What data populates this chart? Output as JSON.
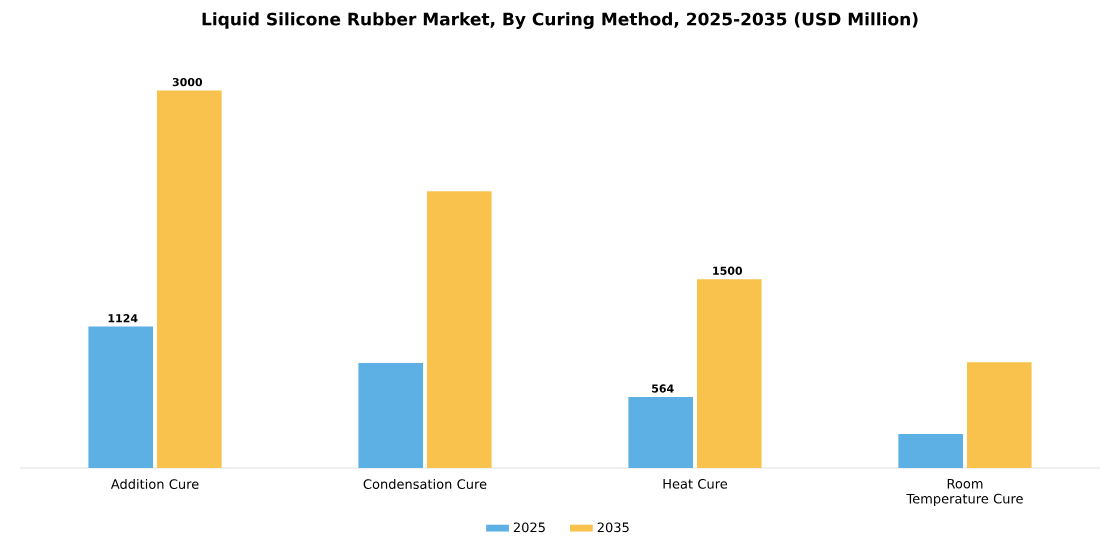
{
  "chart_data": {
    "type": "bar",
    "title": "Liquid Silicone Rubber Market, By Curing Method, 2025-2035 (USD Million)",
    "categories": [
      "Addition Cure",
      "Condensation Cure",
      "Heat Cure",
      "Room Temperature Cure"
    ],
    "series": [
      {
        "name": "2025",
        "color": "#5db0e4",
        "values": [
          1124,
          835,
          564,
          270
        ],
        "value_labels": [
          "1124",
          null,
          "564",
          null
        ]
      },
      {
        "name": "2035",
        "color": "#f8c24c",
        "values": [
          3000,
          2200,
          1500,
          840
        ],
        "value_labels": [
          "3000",
          null,
          "1500",
          null
        ]
      }
    ],
    "legend": "bottom"
  }
}
